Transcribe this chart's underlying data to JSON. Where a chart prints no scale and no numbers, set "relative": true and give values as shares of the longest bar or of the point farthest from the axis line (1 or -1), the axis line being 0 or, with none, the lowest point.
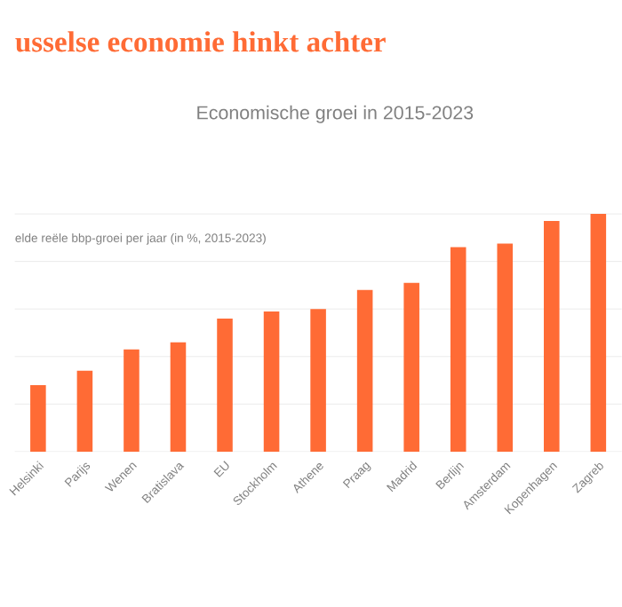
{
  "chart_data": {
    "type": "bar",
    "title": "usselse economie hinkt achter",
    "subtitle": "Economische groei in 2015-2023",
    "ylabel": "elde reële bbp-groei per jaar (in %, 2015-2023)",
    "categories": [
      "Helsinki",
      "Parijs",
      "Wenen",
      "Bratislava",
      "EU",
      "Stockholm",
      "Athene",
      "Praag",
      "Madrid",
      "Berlijn",
      "Amsterdam",
      "Kopenhagen",
      "Zagreb"
    ],
    "values": [
      0.28,
      0.34,
      0.43,
      0.46,
      0.56,
      0.59,
      0.6,
      0.68,
      0.71,
      0.86,
      0.875,
      0.97,
      1
    ],
    "color": "#ff6b35",
    "relative": true,
    "grid": "y"
  }
}
